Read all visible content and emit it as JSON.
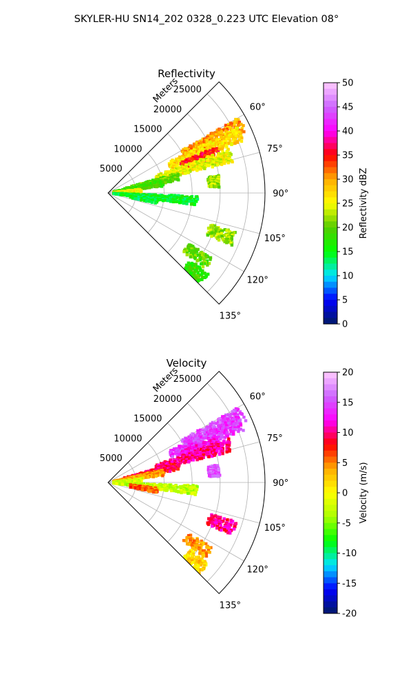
{
  "suptitle": "SKYLER-HU  SN14_202  0328_0.223 UTC Elevation 08°",
  "chart_data": [
    {
      "type": "heatmap",
      "projection": "polar-sector",
      "title": "Reflectivity",
      "range_label": "Meters",
      "range_ticks": [
        5000,
        10000,
        15000,
        20000,
        25000
      ],
      "azimuth_ticks": [
        "60°",
        "75°",
        "90°",
        "105°",
        "120°",
        "135°"
      ],
      "azimuth_range_deg": [
        45,
        135
      ],
      "range_max_m": 28000,
      "grid": true,
      "colorbar": {
        "label": "Reflectivity dBZ",
        "min": 0,
        "max": 50,
        "ticks": [
          0,
          5,
          10,
          15,
          20,
          25,
          30,
          35,
          40,
          45,
          50
        ],
        "colors": [
          "#001a66",
          "#0000ff",
          "#00e5ff",
          "#00ff00",
          "#55cc00",
          "#ffff00",
          "#ffaa00",
          "#ff0000",
          "#ff00ff",
          "#cc66ff",
          "#ffccff"
        ]
      },
      "echoes": [
        {
          "az": 63,
          "r_min": 15000,
          "r_max": 27000,
          "value": 30
        },
        {
          "az": 66,
          "r_min": 12000,
          "r_max": 26000,
          "value": 27
        },
        {
          "az": 70,
          "r_min": 14000,
          "r_max": 21000,
          "value": 35
        },
        {
          "az": 73,
          "r_min": 9000,
          "r_max": 23000,
          "value": 25
        },
        {
          "az": 77,
          "r_min": 3000,
          "r_max": 13000,
          "value": 20
        },
        {
          "az": 80,
          "r_min": 1000,
          "r_max": 10000,
          "value": 18
        },
        {
          "az": 84,
          "r_min": 18000,
          "r_max": 20000,
          "value": 22
        },
        {
          "az": 86,
          "r_min": 1000,
          "r_max": 6000,
          "value": 26
        },
        {
          "az": 95,
          "r_min": 1000,
          "r_max": 16000,
          "value": 15
        },
        {
          "az": 99,
          "r_min": 4000,
          "r_max": 9000,
          "value": 14
        },
        {
          "az": 110,
          "r_min": 19000,
          "r_max": 24000,
          "value": 22
        },
        {
          "az": 125,
          "r_min": 17000,
          "r_max": 22000,
          "value": 20
        },
        {
          "az": 132,
          "r_min": 19000,
          "r_max": 23000,
          "value": 18
        }
      ]
    },
    {
      "type": "heatmap",
      "projection": "polar-sector",
      "title": "Velocity",
      "range_label": "Meters",
      "range_ticks": [
        5000,
        10000,
        15000,
        20000,
        25000
      ],
      "azimuth_ticks": [
        "60°",
        "75°",
        "90°",
        "105°",
        "120°",
        "135°"
      ],
      "azimuth_range_deg": [
        45,
        135
      ],
      "range_max_m": 28000,
      "grid": true,
      "colorbar": {
        "label": "Velocity (m/s)",
        "min": -20,
        "max": 20,
        "ticks": [
          -20,
          -15,
          -10,
          -5,
          0,
          5,
          10,
          15,
          20
        ],
        "colors": [
          "#001a66",
          "#0000ff",
          "#00e5ff",
          "#00ff00",
          "#aaff00",
          "#ffff00",
          "#ffaa00",
          "#ff0000",
          "#ff00ff",
          "#cc66ff",
          "#ffccff"
        ]
      },
      "echoes": [
        {
          "az": 63,
          "r_min": 15000,
          "r_max": 27000,
          "value": 15
        },
        {
          "az": 66,
          "r_min": 12000,
          "r_max": 26000,
          "value": 14
        },
        {
          "az": 70,
          "r_min": 14000,
          "r_max": 21000,
          "value": 12
        },
        {
          "az": 73,
          "r_min": 9000,
          "r_max": 23000,
          "value": 10
        },
        {
          "az": 77,
          "r_min": 3000,
          "r_max": 13000,
          "value": 9
        },
        {
          "az": 80,
          "r_min": 1000,
          "r_max": 10000,
          "value": 4
        },
        {
          "az": 84,
          "r_min": 18000,
          "r_max": 20000,
          "value": 15
        },
        {
          "az": 86,
          "r_min": 1000,
          "r_max": 6000,
          "value": -2
        },
        {
          "az": 95,
          "r_min": 1000,
          "r_max": 16000,
          "value": -3
        },
        {
          "az": 99,
          "r_min": 4000,
          "r_max": 9000,
          "value": 6
        },
        {
          "az": 110,
          "r_min": 19000,
          "r_max": 24000,
          "value": 10
        },
        {
          "az": 125,
          "r_min": 17000,
          "r_max": 22000,
          "value": 4
        },
        {
          "az": 132,
          "r_min": 19000,
          "r_max": 23000,
          "value": 2
        }
      ]
    }
  ]
}
